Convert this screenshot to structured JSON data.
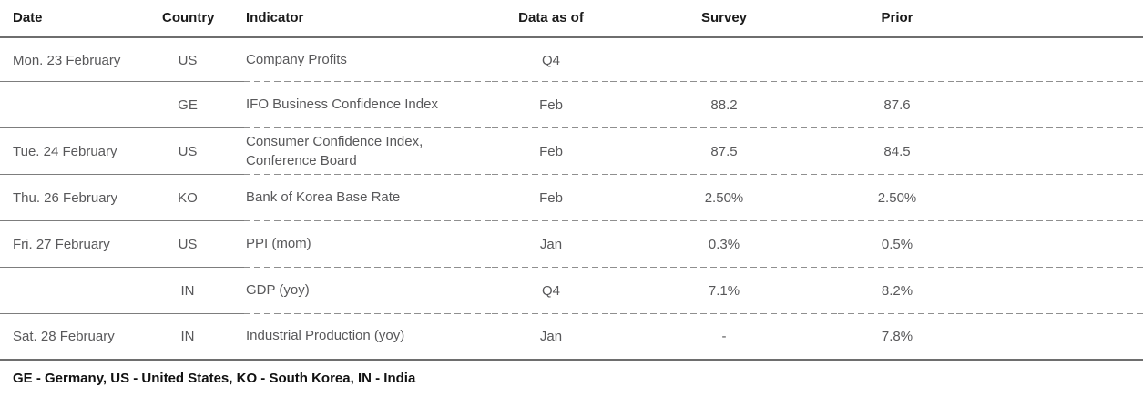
{
  "table": {
    "header": {
      "date": "Date",
      "country": "Country",
      "indicator": "Indicator",
      "data_as_of": "Data as of",
      "survey": "Survey",
      "prior": "Prior"
    },
    "rows": [
      {
        "date": "Mon. 23 February",
        "country": "US",
        "indicator": "Company Profits",
        "data_as_of": "Q4",
        "survey": "",
        "prior": ""
      },
      {
        "date": "",
        "country": "GE",
        "indicator": "IFO Business Confidence Index",
        "data_as_of": "Feb",
        "survey": "88.2",
        "prior": "87.6"
      },
      {
        "date": "Tue. 24 February",
        "country": "US",
        "indicator": "Consumer Confidence Index, Conference Board",
        "data_as_of": "Feb",
        "survey": "87.5",
        "prior": "84.5"
      },
      {
        "date": "Thu. 26 February",
        "country": "KO",
        "indicator": "Bank of Korea Base Rate",
        "data_as_of": "Feb",
        "survey": "2.50%",
        "prior": "2.50%"
      },
      {
        "date": "Fri. 27 February",
        "country": "US",
        "indicator": "PPI (mom)",
        "data_as_of": "Jan",
        "survey": "0.3%",
        "prior": "0.5%"
      },
      {
        "date": "",
        "country": "IN",
        "indicator": "GDP (yoy)",
        "data_as_of": "Q4",
        "survey": "7.1%",
        "prior": "8.2%"
      },
      {
        "date": "Sat. 28 February",
        "country": "IN",
        "indicator": "Industrial Production (yoy)",
        "data_as_of": "Jan",
        "survey": "-",
        "prior": "7.8%"
      }
    ]
  },
  "footnote": "GE - Germany, US - United States, KO - South Korea, IN - India",
  "colors": {
    "rule_heavy": "#6e6e6e",
    "rule_solid": "#7d7d7d",
    "rule_dashed": "#8f8f8f",
    "text_header": "#1a1a1a",
    "text_body": "#58585a"
  }
}
